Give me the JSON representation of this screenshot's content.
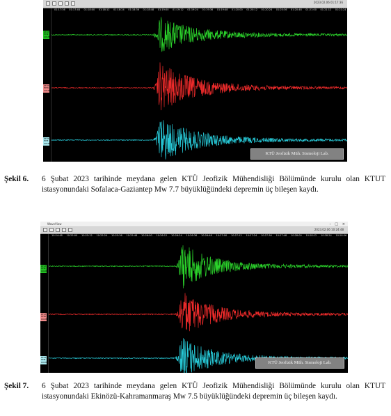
{
  "figure_1": {
    "toolbar_time": "2023.02.06 01:17:36",
    "time_ticks": [
      "01:17:36",
      "01:17:48",
      "01:18:00",
      "01:18:12",
      "01:18:24",
      "01:18:36",
      "01:18:48",
      "01:19:00",
      "01:19:12",
      "01:19:24",
      "01:19:36",
      "01:19:48",
      "01:20:00",
      "01:20:12",
      "01:20:24",
      "01:20:36",
      "01:20:48",
      "01:21:00",
      "01:21:12",
      "01:21:24"
    ],
    "channels": [
      {
        "label_lines": [
          "KTUT",
          "HHZ",
          "COUNTS"
        ],
        "color": "#2bd22b",
        "label_bg": "#22c322"
      },
      {
        "label_lines": [
          "KTUT",
          "HHN",
          "COUNTS"
        ],
        "color": "#ee2b2b",
        "label_bg": "#f08a8a"
      },
      {
        "label_lines": [
          "KTUT",
          "HHE",
          "COUNTS"
        ],
        "color": "#27c8d6",
        "label_bg": "#a9e8ee"
      }
    ],
    "watermark": "KTÜ Jeofizik Müh. Sismoloji Lab."
  },
  "figure_2": {
    "app_title": "WaveView",
    "toolbar_time": "2023.02.06 10:24:48",
    "time_ticks": [
      "10:24:48",
      "10:25:00",
      "10:25:12",
      "10:25:24",
      "10:25:36",
      "10:25:48",
      "10:26:00",
      "10:26:12",
      "10:26:24",
      "10:26:36",
      "10:26:48",
      "10:27:00",
      "10:27:12",
      "10:27:24",
      "10:27:36",
      "10:27:48",
      "10:28:00",
      "10:28:12",
      "10:28:24",
      "10:28:36"
    ],
    "channels": [
      {
        "label_lines": [
          "KTUT",
          "HHZ",
          "COUNTS"
        ],
        "color": "#2bd22b",
        "label_bg": "#22c322"
      },
      {
        "label_lines": [
          "KTUT",
          "HHN",
          "COUNTS"
        ],
        "color": "#ee2b2b",
        "label_bg": "#f08a8a"
      },
      {
        "label_lines": [
          "KTUT",
          "HHE",
          "COUNTS"
        ],
        "color": "#27c8d6",
        "label_bg": "#a9e8ee"
      }
    ],
    "watermark": "KTÜ Jeofizik Müh. Sismoloji Lab."
  },
  "caption_1": {
    "label": "Şekil 6.",
    "text": "6 Şubat 2023 tarihinde meydana gelen KTÜ Jeofizik Mühendisliği Bölümünde kurulu olan KTUT istasyonundaki Sofalaca-Gaziantep Mw 7.7 büyüklüğündeki depremin üç bileşen kaydı."
  },
  "caption_2": {
    "label": "Şekil 7.",
    "text": "6 Şubat 2023 tarihinde meydana gelen KTÜ Jeofizik Mühendisliği Bölümünde kurulu olan KTUT istasyonundaki Ekinözü-Kahramanmaraş Mw 7.5 büyüklüğündeki depremin üç bileşen kaydı."
  }
}
